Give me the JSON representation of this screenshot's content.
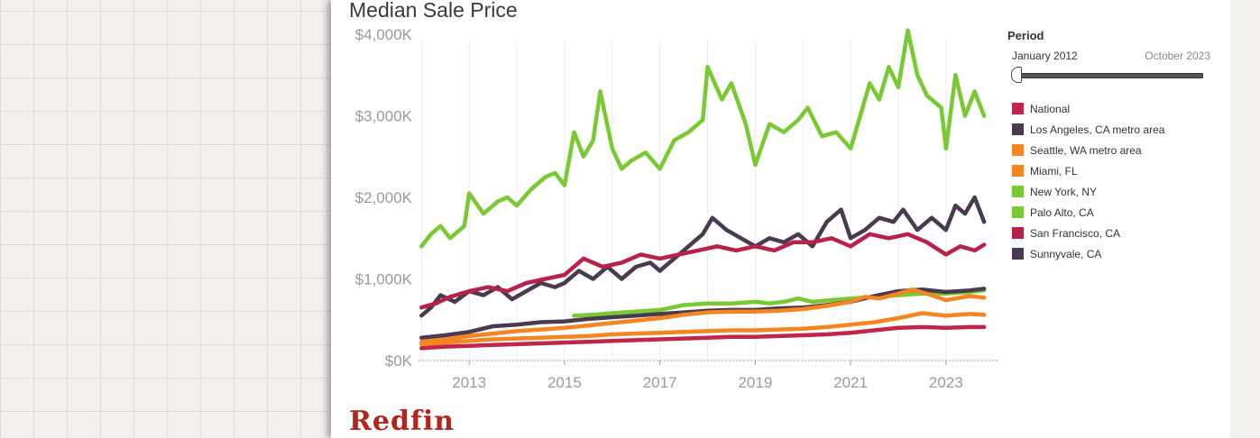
{
  "colors": {
    "National": "#c0264a",
    "Los Angeles, CA metro area": "#4a3a4f",
    "Seattle, WA metro area": "#f58520",
    "Miami, FL": "#f58520",
    "New York, NY": "#79c932",
    "Palo Alto, CA": "#79c932",
    "San Francisco, CA": "#b8214a",
    "Sunnyvale, CA": "#4a3a4f"
  },
  "period": {
    "title": "Period",
    "start_label": "January 2012",
    "end_label": "October 2023",
    "position": 0
  },
  "logo": "Redfin",
  "chart_data": {
    "type": "line",
    "title": "Median Sale Price",
    "xlabel": "",
    "ylabel": "",
    "x_ticks": [
      "2013",
      "2015",
      "2017",
      "2019",
      "2021",
      "2023"
    ],
    "y_ticks": [
      "$0K",
      "$1,000K",
      "$2,000K",
      "$3,000K",
      "$4,000K"
    ],
    "xlim": [
      2012.0,
      2023.8
    ],
    "ylim": [
      0,
      4200
    ],
    "grid": true,
    "legend_position": "right",
    "legend": [
      "National",
      "Los Angeles, CA metro area",
      "Seattle, WA metro area",
      "Miami, FL",
      "New York, NY",
      "Palo Alto, CA",
      "San Francisco, CA",
      "Sunnyvale, CA"
    ],
    "series": [
      {
        "name": "Palo Alto, CA",
        "points": [
          [
            2012.0,
            1400
          ],
          [
            2012.2,
            1550
          ],
          [
            2012.4,
            1650
          ],
          [
            2012.6,
            1500
          ],
          [
            2012.9,
            1650
          ],
          [
            2013.0,
            2050
          ],
          [
            2013.3,
            1800
          ],
          [
            2013.6,
            1950
          ],
          [
            2013.8,
            2000
          ],
          [
            2014.0,
            1900
          ],
          [
            2014.3,
            2100
          ],
          [
            2014.6,
            2250
          ],
          [
            2014.8,
            2300
          ],
          [
            2015.0,
            2150
          ],
          [
            2015.2,
            2800
          ],
          [
            2015.4,
            2500
          ],
          [
            2015.6,
            2700
          ],
          [
            2015.75,
            3300
          ],
          [
            2016.0,
            2600
          ],
          [
            2016.2,
            2350
          ],
          [
            2016.4,
            2450
          ],
          [
            2016.7,
            2550
          ],
          [
            2017.0,
            2350
          ],
          [
            2017.3,
            2700
          ],
          [
            2017.6,
            2800
          ],
          [
            2017.9,
            2950
          ],
          [
            2018.0,
            3600
          ],
          [
            2018.3,
            3200
          ],
          [
            2018.5,
            3400
          ],
          [
            2018.8,
            2900
          ],
          [
            2019.0,
            2400
          ],
          [
            2019.3,
            2900
          ],
          [
            2019.6,
            2800
          ],
          [
            2019.9,
            2950
          ],
          [
            2020.1,
            3100
          ],
          [
            2020.4,
            2750
          ],
          [
            2020.7,
            2800
          ],
          [
            2021.0,
            2600
          ],
          [
            2021.2,
            3000
          ],
          [
            2021.4,
            3400
          ],
          [
            2021.6,
            3200
          ],
          [
            2021.8,
            3600
          ],
          [
            2022.0,
            3350
          ],
          [
            2022.2,
            4050
          ],
          [
            2022.4,
            3500
          ],
          [
            2022.6,
            3250
          ],
          [
            2022.9,
            3100
          ],
          [
            2023.0,
            2600
          ],
          [
            2023.2,
            3500
          ],
          [
            2023.4,
            3000
          ],
          [
            2023.6,
            3300
          ],
          [
            2023.8,
            3000
          ]
        ]
      },
      {
        "name": "New York, NY",
        "points": [
          [
            2015.2,
            550
          ],
          [
            2015.6,
            560
          ],
          [
            2016.0,
            580
          ],
          [
            2016.5,
            600
          ],
          [
            2017.0,
            620
          ],
          [
            2017.5,
            680
          ],
          [
            2018.0,
            700
          ],
          [
            2018.5,
            700
          ],
          [
            2019.0,
            720
          ],
          [
            2019.3,
            700
          ],
          [
            2019.6,
            720
          ],
          [
            2019.9,
            760
          ],
          [
            2020.2,
            720
          ],
          [
            2020.6,
            740
          ],
          [
            2021.0,
            760
          ],
          [
            2021.5,
            780
          ],
          [
            2022.0,
            800
          ],
          [
            2022.5,
            820
          ],
          [
            2023.0,
            820
          ],
          [
            2023.5,
            840
          ],
          [
            2023.8,
            860
          ]
        ]
      },
      {
        "name": "Sunnyvale, CA",
        "points": [
          [
            2012.0,
            550
          ],
          [
            2012.2,
            650
          ],
          [
            2012.4,
            800
          ],
          [
            2012.7,
            720
          ],
          [
            2013.0,
            850
          ],
          [
            2013.3,
            800
          ],
          [
            2013.6,
            900
          ],
          [
            2013.9,
            750
          ],
          [
            2014.2,
            850
          ],
          [
            2014.5,
            950
          ],
          [
            2014.8,
            900
          ],
          [
            2015.0,
            950
          ],
          [
            2015.3,
            1100
          ],
          [
            2015.6,
            1000
          ],
          [
            2015.9,
            1150
          ],
          [
            2016.2,
            1000
          ],
          [
            2016.5,
            1150
          ],
          [
            2016.8,
            1200
          ],
          [
            2017.0,
            1100
          ],
          [
            2017.3,
            1250
          ],
          [
            2017.6,
            1400
          ],
          [
            2017.9,
            1550
          ],
          [
            2018.1,
            1750
          ],
          [
            2018.4,
            1600
          ],
          [
            2018.7,
            1500
          ],
          [
            2019.0,
            1400
          ],
          [
            2019.3,
            1500
          ],
          [
            2019.6,
            1450
          ],
          [
            2019.9,
            1550
          ],
          [
            2020.2,
            1400
          ],
          [
            2020.5,
            1700
          ],
          [
            2020.8,
            1850
          ],
          [
            2021.0,
            1500
          ],
          [
            2021.3,
            1600
          ],
          [
            2021.6,
            1750
          ],
          [
            2021.9,
            1700
          ],
          [
            2022.1,
            1850
          ],
          [
            2022.4,
            1600
          ],
          [
            2022.7,
            1750
          ],
          [
            2023.0,
            1600
          ],
          [
            2023.2,
            1900
          ],
          [
            2023.4,
            1800
          ],
          [
            2023.6,
            2000
          ],
          [
            2023.8,
            1700
          ]
        ]
      },
      {
        "name": "San Francisco, CA",
        "points": [
          [
            2012.0,
            650
          ],
          [
            2012.3,
            700
          ],
          [
            2012.6,
            780
          ],
          [
            2013.0,
            850
          ],
          [
            2013.4,
            900
          ],
          [
            2013.8,
            850
          ],
          [
            2014.2,
            950
          ],
          [
            2014.6,
            1000
          ],
          [
            2015.0,
            1050
          ],
          [
            2015.4,
            1250
          ],
          [
            2015.8,
            1150
          ],
          [
            2016.2,
            1200
          ],
          [
            2016.6,
            1300
          ],
          [
            2017.0,
            1250
          ],
          [
            2017.4,
            1300
          ],
          [
            2017.8,
            1350
          ],
          [
            2018.2,
            1400
          ],
          [
            2018.6,
            1350
          ],
          [
            2019.0,
            1400
          ],
          [
            2019.4,
            1350
          ],
          [
            2019.8,
            1450
          ],
          [
            2020.2,
            1450
          ],
          [
            2020.6,
            1500
          ],
          [
            2021.0,
            1400
          ],
          [
            2021.4,
            1550
          ],
          [
            2021.8,
            1500
          ],
          [
            2022.2,
            1550
          ],
          [
            2022.6,
            1450
          ],
          [
            2023.0,
            1300
          ],
          [
            2023.3,
            1400
          ],
          [
            2023.6,
            1350
          ],
          [
            2023.8,
            1420
          ]
        ]
      },
      {
        "name": "Los Angeles, CA metro area",
        "points": [
          [
            2012.0,
            280
          ],
          [
            2012.5,
            310
          ],
          [
            2013.0,
            350
          ],
          [
            2013.5,
            420
          ],
          [
            2014.0,
            440
          ],
          [
            2014.5,
            470
          ],
          [
            2015.0,
            480
          ],
          [
            2015.5,
            510
          ],
          [
            2016.0,
            530
          ],
          [
            2016.5,
            550
          ],
          [
            2017.0,
            570
          ],
          [
            2017.5,
            590
          ],
          [
            2018.0,
            610
          ],
          [
            2018.5,
            620
          ],
          [
            2019.0,
            620
          ],
          [
            2019.5,
            640
          ],
          [
            2020.0,
            650
          ],
          [
            2020.5,
            680
          ],
          [
            2021.0,
            720
          ],
          [
            2021.5,
            790
          ],
          [
            2022.0,
            850
          ],
          [
            2022.5,
            870
          ],
          [
            2023.0,
            840
          ],
          [
            2023.5,
            860
          ],
          [
            2023.8,
            880
          ]
        ]
      },
      {
        "name": "Seattle, WA metro area",
        "points": [
          [
            2012.0,
            230
          ],
          [
            2012.5,
            260
          ],
          [
            2013.0,
            300
          ],
          [
            2013.5,
            330
          ],
          [
            2014.0,
            360
          ],
          [
            2014.5,
            380
          ],
          [
            2015.0,
            400
          ],
          [
            2015.5,
            430
          ],
          [
            2016.0,
            460
          ],
          [
            2016.5,
            490
          ],
          [
            2017.0,
            520
          ],
          [
            2017.5,
            560
          ],
          [
            2018.0,
            590
          ],
          [
            2018.5,
            600
          ],
          [
            2019.0,
            600
          ],
          [
            2019.5,
            610
          ],
          [
            2020.0,
            630
          ],
          [
            2020.5,
            670
          ],
          [
            2021.0,
            720
          ],
          [
            2021.3,
            780
          ],
          [
            2021.6,
            760
          ],
          [
            2022.0,
            820
          ],
          [
            2022.3,
            870
          ],
          [
            2022.7,
            800
          ],
          [
            2023.0,
            740
          ],
          [
            2023.5,
            790
          ],
          [
            2023.8,
            770
          ]
        ]
      },
      {
        "name": "Miami, FL",
        "points": [
          [
            2012.0,
            200
          ],
          [
            2012.5,
            220
          ],
          [
            2013.0,
            240
          ],
          [
            2013.5,
            260
          ],
          [
            2014.0,
            270
          ],
          [
            2014.5,
            280
          ],
          [
            2015.0,
            290
          ],
          [
            2015.5,
            300
          ],
          [
            2016.0,
            320
          ],
          [
            2016.5,
            330
          ],
          [
            2017.0,
            340
          ],
          [
            2017.5,
            350
          ],
          [
            2018.0,
            360
          ],
          [
            2018.5,
            370
          ],
          [
            2019.0,
            370
          ],
          [
            2019.5,
            380
          ],
          [
            2020.0,
            390
          ],
          [
            2020.5,
            410
          ],
          [
            2021.0,
            440
          ],
          [
            2021.5,
            470
          ],
          [
            2022.0,
            520
          ],
          [
            2022.5,
            580
          ],
          [
            2023.0,
            550
          ],
          [
            2023.5,
            570
          ],
          [
            2023.8,
            560
          ]
        ]
      },
      {
        "name": "National",
        "points": [
          [
            2012.0,
            150
          ],
          [
            2012.5,
            170
          ],
          [
            2013.0,
            180
          ],
          [
            2013.5,
            190
          ],
          [
            2014.0,
            200
          ],
          [
            2014.5,
            210
          ],
          [
            2015.0,
            220
          ],
          [
            2015.5,
            230
          ],
          [
            2016.0,
            240
          ],
          [
            2016.5,
            250
          ],
          [
            2017.0,
            260
          ],
          [
            2017.5,
            270
          ],
          [
            2018.0,
            280
          ],
          [
            2018.5,
            290
          ],
          [
            2019.0,
            290
          ],
          [
            2019.5,
            300
          ],
          [
            2020.0,
            310
          ],
          [
            2020.5,
            320
          ],
          [
            2021.0,
            340
          ],
          [
            2021.5,
            370
          ],
          [
            2022.0,
            400
          ],
          [
            2022.5,
            410
          ],
          [
            2023.0,
            400
          ],
          [
            2023.5,
            410
          ],
          [
            2023.8,
            410
          ]
        ]
      }
    ]
  }
}
